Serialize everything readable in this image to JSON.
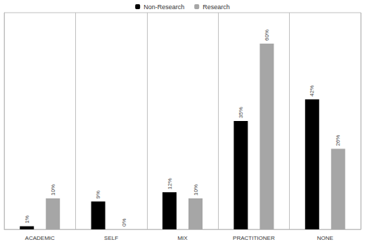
{
  "chart_data": {
    "type": "bar",
    "categories": [
      "ACADEMIC",
      "SELF",
      "MIX",
      "PRACTITIONER",
      "NONE"
    ],
    "series": [
      {
        "name": "Non-Research",
        "color": "#000000",
        "values": [
          1,
          9,
          12,
          35,
          42
        ],
        "value_labels": [
          "1%",
          "9%",
          "12%",
          "35%",
          "42%"
        ]
      },
      {
        "name": "Research",
        "color": "#a6a6a6",
        "values": [
          10,
          0,
          10,
          60,
          26
        ],
        "value_labels": [
          "10%",
          "0%",
          "10%",
          "60%",
          "26%"
        ]
      }
    ],
    "ylim": [
      0,
      70
    ],
    "grid": false,
    "legend": "top",
    "data_labels": true,
    "tick_labels": "x"
  }
}
